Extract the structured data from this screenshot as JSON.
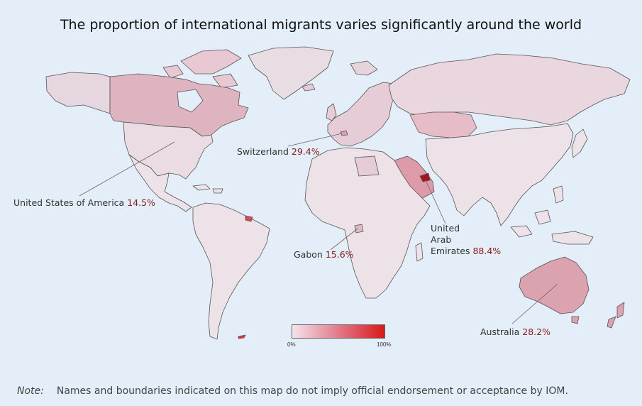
{
  "map": {
    "title": "The proportion of international migrants varies significantly around the world",
    "colors": {
      "ocean": "#e3eef8",
      "low": "#f3e4ea",
      "mid": "#e07080",
      "high": "#d81818",
      "callout_value": "#8b1a1a"
    },
    "callouts": [
      {
        "country": "Switzerland",
        "value": "29.4%"
      },
      {
        "country": "United States of America",
        "value": "14.5%"
      },
      {
        "country": "United Arab Emirates",
        "country_lines": [
          "United",
          "Arab",
          "Emirates"
        ],
        "value": "88.4%"
      },
      {
        "country": "Gabon",
        "value": "15.6%"
      },
      {
        "country": "Australia",
        "value": "28.2%"
      }
    ],
    "legend": {
      "min_label": "0%",
      "max_label": "100%"
    },
    "note": {
      "label": "Note:",
      "text": "Names and boundaries indicated on this map do not imply official endorsement or acceptance by IOM."
    }
  }
}
